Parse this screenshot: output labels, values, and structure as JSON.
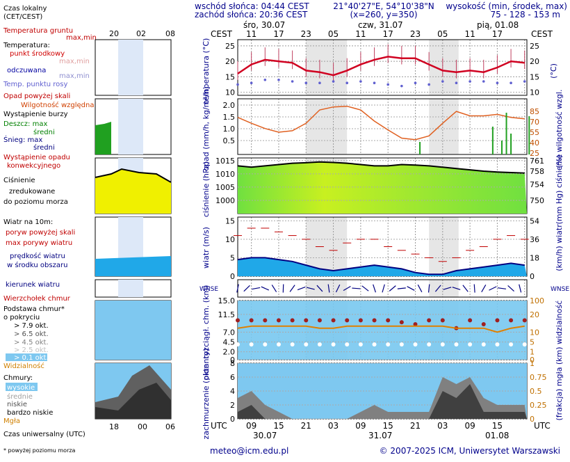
{
  "header": {
    "sunrise": "wschód słońca: 04:44 CEST",
    "sunset": "zachód słońca: 20:36 CEST",
    "coords": "21°40'27\"E, 54°10'38\"N",
    "grid": "(x=260, y=350)",
    "elev_title": "wysokość (min, środek, max)",
    "elev_values": "75 - 128 - 153 m",
    "tz_label": "CEST",
    "days": [
      "śro, 30.07",
      "czw, 31.07",
      "pią, 01.08"
    ],
    "cest_hours": [
      "11",
      "17",
      "23",
      "05",
      "11",
      "17",
      "23",
      "05",
      "11",
      "17"
    ],
    "utc_label": "UTC",
    "utc_hours": [
      "09",
      "15",
      "21",
      "03",
      "09",
      "15",
      "21",
      "03",
      "09",
      "15"
    ],
    "utc_dates": [
      "30.07",
      "31.07",
      "01.08"
    ]
  },
  "legend": {
    "local_time": "Czas lokalny",
    "local_time_sub": "(CET/CEST)",
    "local_hours": [
      "20",
      "02",
      "08"
    ],
    "soil_temp": "Temperatura gruntu",
    "soil_sub": "max,min",
    "temperature": "Temperatura:",
    "temp_mid": "punkt środkowy",
    "temp_maxmin": "max,min",
    "feels": "odczuwana",
    "feels_maxmin": "max,min",
    "dewpoint": "Temp. punktu rosy",
    "precip_above": "Opad powyżej skali",
    "humidity": "Wilgotność względna",
    "storm": "Wystąpienie burzy",
    "rain": "Deszcz: max",
    "rain_mean": "średni",
    "snow": "Śnieg: max",
    "snow_mean": "średni",
    "conv": "Wystąpienie opadu",
    "conv2": "konwekcyjnego",
    "pressure1": "Ciśnienie",
    "pressure2": "zredukowane",
    "pressure3": "do poziomu morza",
    "wind_title": "Wiatr na 10m:",
    "gust_above": "poryw powyżej skali",
    "gust_max": "max porywy wiatru",
    "wind_speed1": "prędkość wiatru",
    "wind_speed2": "w środku obszaru",
    "wind_dir": "kierunek wiatru",
    "cloud_top": "Wierzchołek chmur",
    "cloud_base1": "Podstawa chmur*",
    "cloud_base2": "o pokryciu",
    "okt": [
      "> 7.9 okt.",
      "> 6.5 okt.",
      "> 4.5 okt.",
      "> 2.5 okt.",
      "> 0.1 okt."
    ],
    "visibility": "Widzialność",
    "clouds": "Chmury:",
    "cl_high": "wysokie",
    "cl_mid": "średnie",
    "cl_low": "niskie",
    "cl_vlow": "bardzo niskie",
    "fog": "Mgła",
    "utc_time": "Czas uniwersalny (UTC)",
    "utc_hours": [
      "18",
      "00",
      "06"
    ],
    "footnote": "* powyżej poziomu morza"
  },
  "axes": {
    "temp_left": "temperatura (°C)",
    "temp_right": "(°C)",
    "precip_left": "opad (mm/h, kg/m²/h)",
    "precip_right": "(%) wilgotność wzgl.",
    "press_left": "ciśnienie (hPa)",
    "press_right": "(mm Hg) ciśnienie",
    "wind_left": "wiatr (m/s)",
    "wind_right": "(km/h) wiatr",
    "cloudh_left": "pion. rozciągł. chm. (km)",
    "cloudh_right": "(km) widzialność",
    "cloudc_left": "zachmurzenie (oktanty)",
    "cloudc_right": "(frakcja) mgła",
    "compass": "WNSE"
  },
  "chart_data": [
    {
      "type": "line",
      "title": "temperatura",
      "ylabel": "°C",
      "ylim": [
        9,
        27
      ],
      "yticks": [
        "25",
        "20",
        "15",
        "10"
      ],
      "x_hours_utc": [
        6,
        9,
        12,
        15,
        18,
        21,
        24,
        27,
        30,
        33,
        36,
        39,
        42,
        45,
        48,
        51,
        54,
        57,
        60,
        63,
        66,
        69
      ],
      "series": [
        {
          "name": "punkt środkowy",
          "values": [
            16,
            19,
            20.5,
            20,
            19.5,
            17,
            16.5,
            15.5,
            17,
            19,
            20.5,
            21.5,
            21,
            21,
            19,
            17,
            16.5,
            17,
            16.5,
            18,
            20,
            19.5
          ]
        },
        {
          "name": "Temp. punktu rosy",
          "values": [
            12.5,
            13,
            14,
            14,
            13.5,
            13,
            13,
            13.5,
            13,
            13.5,
            13,
            12.5,
            12,
            13,
            12.5,
            13.5,
            13,
            13.5,
            13.5,
            13,
            13,
            13.5
          ]
        }
      ]
    },
    {
      "type": "line",
      "title": "opad",
      "ylabel": "mm/h",
      "yticks": [
        "2.0",
        "1.5",
        "1.0",
        "0.5"
      ],
      "right_yticks": [
        "85",
        "70",
        "55",
        "40",
        "25"
      ],
      "series": [
        {
          "name": "Wilgotność względna",
          "values": [
            70,
            62,
            55,
            50,
            52,
            62,
            80,
            84,
            85,
            80,
            65,
            53,
            42,
            40,
            45,
            62,
            78,
            72,
            72,
            74,
            70,
            68
          ]
        }
      ]
    },
    {
      "type": "area",
      "title": "ciśnienie",
      "ylabel": "hPa",
      "ylim": [
        995,
        1016
      ],
      "yticks": [
        "1015",
        "1010",
        "1005",
        "1000"
      ],
      "right_yticks": [
        "761",
        "758",
        "754",
        "750"
      ],
      "series": [
        {
          "name": "Ciśnienie",
          "values": [
            1013,
            1012.5,
            1013,
            1013.5,
            1014,
            1014.2,
            1014.5,
            1014.3,
            1014,
            1013.5,
            1013,
            1013,
            1013.5,
            1013.3,
            1013,
            1012.5,
            1012,
            1011.5,
            1011,
            1010.7,
            1010.5,
            1010.3
          ]
        }
      ]
    },
    {
      "type": "area",
      "title": "wiatr",
      "ylabel": "m/s",
      "ylim": [
        0,
        15
      ],
      "yticks": [
        "15",
        "10",
        "5",
        "0"
      ],
      "right_yticks": [
        "54",
        "36",
        "18",
        "0"
      ],
      "series": [
        {
          "name": "max porywy wiatru",
          "values": [
            11,
            13,
            13,
            12,
            11,
            10,
            8,
            7,
            9,
            10,
            10,
            8,
            7,
            6,
            5,
            4,
            5,
            7,
            8,
            10,
            11,
            10
          ]
        },
        {
          "name": "prędkość wiatru",
          "values": [
            4.5,
            5,
            5,
            4.5,
            4,
            3,
            2,
            1.5,
            2,
            2.5,
            3,
            2.5,
            2,
            1,
            0.5,
            0.5,
            1.5,
            2,
            2.5,
            3,
            3.5,
            3
          ]
        }
      ]
    },
    {
      "type": "scatter",
      "title": "chmury",
      "ylabel": "km",
      "ylim": [
        0,
        15
      ],
      "yticks": [
        "15.0",
        "11.5",
        "7.0",
        "4.5",
        "2.0",
        "0"
      ],
      "right_yticks": [
        "100",
        "20",
        "10",
        "5",
        "1",
        "0"
      ],
      "series": [
        {
          "name": "Wierzchołek chmur",
          "values": [
            10,
            10,
            10,
            10,
            10,
            10,
            10,
            10,
            10,
            10,
            10,
            10,
            9.5,
            9,
            10,
            10,
            8,
            10,
            9,
            10,
            10,
            10
          ]
        },
        {
          "name": "Widzialność",
          "values": [
            8,
            8.5,
            8.5,
            8.5,
            8.5,
            8.5,
            8,
            8,
            8.5,
            8.5,
            8.5,
            8.5,
            8.5,
            8.5,
            8.5,
            8.5,
            8,
            8,
            8,
            7,
            8,
            8.5
          ]
        }
      ]
    },
    {
      "type": "area",
      "title": "zachmurzenie",
      "ylabel": "oktanty",
      "ylim": [
        0,
        8
      ],
      "yticks": [
        "8",
        "6",
        "4",
        "2",
        "0"
      ],
      "right_yticks": [
        "1",
        "0.75",
        "0.5",
        "0.25",
        "0"
      ],
      "series": [
        {
          "name": "niskie",
          "values": [
            3,
            4,
            2,
            1,
            0,
            0,
            0,
            0,
            0,
            1,
            2,
            1,
            1,
            1,
            1,
            6,
            5,
            6,
            3,
            2,
            2,
            2
          ]
        },
        {
          "name": "bardzo niskie",
          "values": [
            1,
            2,
            0,
            0,
            0,
            0,
            0,
            0,
            0,
            0,
            0,
            0,
            0,
            0,
            0,
            4,
            3,
            5,
            1,
            1,
            1,
            1
          ]
        }
      ]
    }
  ],
  "footer": {
    "email": "meteo@icm.edu.pl",
    "copyright": "© 2007-2025 ICM, Uniwersytet Warszawski"
  }
}
